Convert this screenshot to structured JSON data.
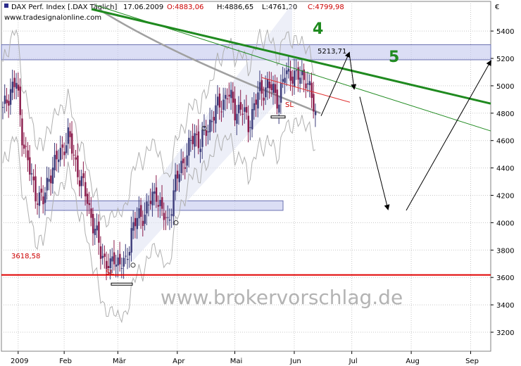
{
  "header": {
    "instrument": "DAX Perf. Index [.DAX Täglich]",
    "date": "17.06.2009",
    "open": "O:4883,06",
    "high": "H:4886,65",
    "low": "L:4761,20",
    "close": "C:4799,98",
    "website": "www.tradesignalonline.com",
    "currency": "€"
  },
  "watermark": "www.brokervorschlag.de",
  "annotations": {
    "wave4": "4",
    "wave5": "5",
    "resistance_label": "5213,71",
    "support_label": "3618,58",
    "sl1": "SL",
    "sl2": "SL"
  },
  "colors": {
    "up": "#3b3b7a",
    "down": "#8a1a4a",
    "support": "#e00000",
    "trend": "#1f8a1f",
    "zone": "#c8ccf0",
    "ma": "#a0a0a0"
  },
  "chart_data": {
    "type": "candlestick",
    "title": "DAX Perf. Index [.DAX Täglich] 17.06.2009",
    "ylim": [
      3000,
      5600
    ],
    "y_ticks": [
      3200,
      3400,
      3600,
      3800,
      4000,
      4200,
      4400,
      4600,
      4800,
      5000,
      5200,
      5400
    ],
    "y_tick_labels": [
      "3200",
      "3400",
      "3600",
      "3800",
      "4000",
      "4200",
      "4400",
      "4600",
      "4800",
      "5000",
      "5200",
      "5400"
    ],
    "x_labels": [
      {
        "label": "2009",
        "day": 8
      },
      {
        "label": "Feb",
        "day": 32
      },
      {
        "label": "Mär",
        "day": 60
      },
      {
        "label": "Apr",
        "day": 91
      },
      {
        "label": "Mai",
        "day": 121
      },
      {
        "label": "Jun",
        "day": 152
      },
      {
        "label": "Jul",
        "day": 182
      },
      {
        "label": "Aug",
        "day": 213
      },
      {
        "label": "Sep",
        "day": 244
      }
    ],
    "x_range_days": [
      0,
      252
    ],
    "horizontal_levels": [
      {
        "name": "support",
        "value": 3618.58
      },
      {
        "name": "resistance",
        "value": 5213.71
      }
    ],
    "key_points": [
      {
        "label": "low",
        "date": "06.03.2009",
        "value": 3588
      },
      {
        "label": "high",
        "date": "01.06.2009",
        "value": 5130
      },
      {
        "label": "last close",
        "date": "17.06.2009",
        "value": 4799.98
      }
    ],
    "close_path": [
      {
        "day": 0,
        "v": 4810
      },
      {
        "day": 4,
        "v": 4980
      },
      {
        "day": 7,
        "v": 5020
      },
      {
        "day": 10,
        "v": 4650
      },
      {
        "day": 14,
        "v": 4370
      },
      {
        "day": 17,
        "v": 4220
      },
      {
        "day": 21,
        "v": 4150
      },
      {
        "day": 24,
        "v": 4350
      },
      {
        "day": 27,
        "v": 4420
      },
      {
        "day": 30,
        "v": 4520
      },
      {
        "day": 34,
        "v": 4620
      },
      {
        "day": 37,
        "v": 4500
      },
      {
        "day": 40,
        "v": 4320
      },
      {
        "day": 44,
        "v": 4180
      },
      {
        "day": 47,
        "v": 3980
      },
      {
        "day": 51,
        "v": 3800
      },
      {
        "day": 54,
        "v": 3700
      },
      {
        "day": 56,
        "v": 3660
      },
      {
        "day": 58,
        "v": 3760
      },
      {
        "day": 61,
        "v": 3700
      },
      {
        "day": 64,
        "v": 3690
      },
      {
        "day": 67,
        "v": 3950
      },
      {
        "day": 70,
        "v": 4020
      },
      {
        "day": 74,
        "v": 4080
      },
      {
        "day": 77,
        "v": 4150
      },
      {
        "day": 80,
        "v": 4230
      },
      {
        "day": 83,
        "v": 4060
      },
      {
        "day": 86,
        "v": 4000
      },
      {
        "day": 90,
        "v": 4280
      },
      {
        "day": 93,
        "v": 4420
      },
      {
        "day": 96,
        "v": 4500
      },
      {
        "day": 100,
        "v": 4650
      },
      {
        "day": 103,
        "v": 4580
      },
      {
        "day": 107,
        "v": 4700
      },
      {
        "day": 110,
        "v": 4800
      },
      {
        "day": 114,
        "v": 4870
      },
      {
        "day": 117,
        "v": 4950
      },
      {
        "day": 121,
        "v": 4820
      },
      {
        "day": 124,
        "v": 4840
      },
      {
        "day": 128,
        "v": 4720
      },
      {
        "day": 131,
        "v": 4850
      },
      {
        "day": 134,
        "v": 4960
      },
      {
        "day": 138,
        "v": 5000
      },
      {
        "day": 141,
        "v": 4960
      },
      {
        "day": 144,
        "v": 4900
      },
      {
        "day": 147,
        "v": 5080
      },
      {
        "day": 150,
        "v": 5100
      },
      {
        "day": 153,
        "v": 5050
      },
      {
        "day": 156,
        "v": 5080
      },
      {
        "day": 158,
        "v": 5060
      },
      {
        "day": 160,
        "v": 4950
      },
      {
        "day": 162,
        "v": 4850
      },
      {
        "day": 163,
        "v": 4800
      }
    ]
  }
}
